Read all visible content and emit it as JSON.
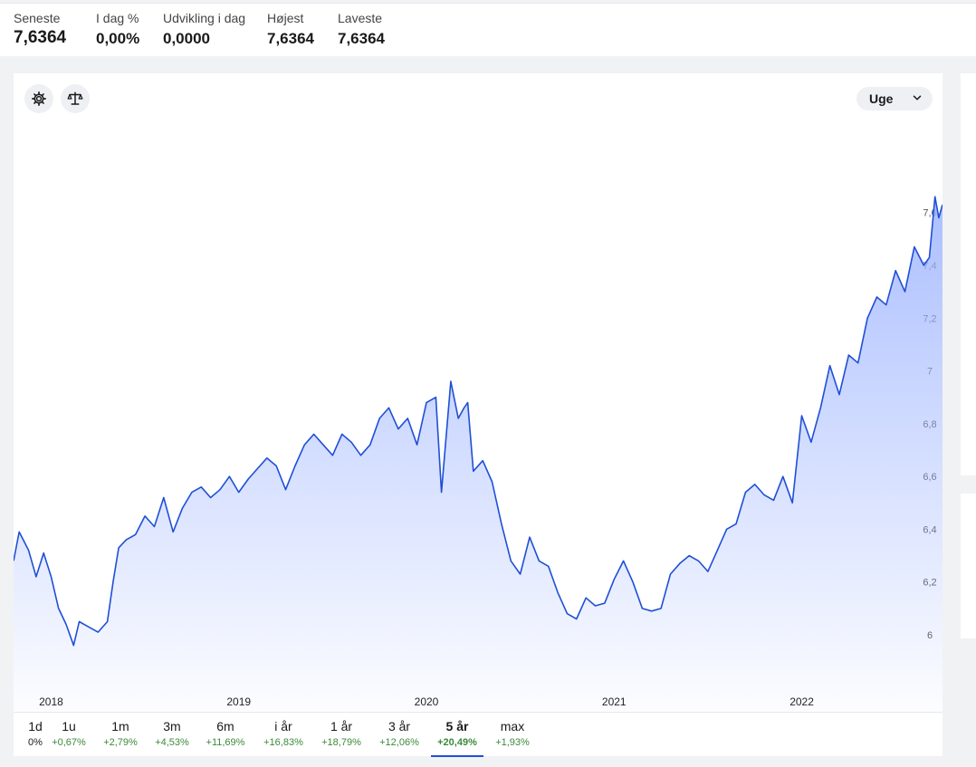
{
  "stats": [
    {
      "label": "Seneste",
      "value": "7,6364"
    },
    {
      "label": "I dag %",
      "value": "0,00%"
    },
    {
      "label": "Udvikling i dag",
      "value": "0,0000"
    },
    {
      "label": "Højest",
      "value": "7,6364"
    },
    {
      "label": "Laveste",
      "value": "7,6364"
    }
  ],
  "toolbar": {
    "settings_icon": "gear-icon",
    "compare_icon": "scale-icon",
    "interval_label": "Uge",
    "interval_icon": "chevron-down-icon"
  },
  "periods": [
    {
      "label": "1d",
      "change": "0%"
    },
    {
      "label": "1u",
      "change": "+0,67%"
    },
    {
      "label": "1m",
      "change": "+2,79%"
    },
    {
      "label": "3m",
      "change": "+4,53%"
    },
    {
      "label": "6m",
      "change": "+11,69%"
    },
    {
      "label": "i år",
      "change": "+16,83%"
    },
    {
      "label": "1 år",
      "change": "+18,79%"
    },
    {
      "label": "3 år",
      "change": "+12,06%"
    },
    {
      "label": "5 år",
      "change": "+20,49%"
    },
    {
      "label": "max",
      "change": "+1,93%"
    }
  ],
  "active_period": "5 år",
  "colors": {
    "line": "#1f4fd6",
    "fill_top": "#9db4ff",
    "positive": "#3b8a3b"
  },
  "chart_data": {
    "type": "area",
    "y_ticks": [
      "6",
      "6,2",
      "6,4",
      "6,6",
      "6,8",
      "7",
      "7,2",
      "7,4",
      "7,6"
    ],
    "y_tick_values": [
      6.0,
      6.2,
      6.4,
      6.6,
      6.8,
      7.0,
      7.2,
      7.4,
      7.6
    ],
    "x_ticks": [
      "2018",
      "2019",
      "2020",
      "2021",
      "2022"
    ],
    "x_tick_values": [
      2018.0,
      2019.0,
      2020.0,
      2021.0,
      2022.0
    ],
    "xlim": [
      2017.8,
      2022.75
    ],
    "ylim": [
      5.88,
      7.75
    ],
    "grid": false,
    "series": [
      {
        "x": [
          2017.8,
          2017.83,
          2017.88,
          2017.92,
          2017.96,
          2018.0,
          2018.04,
          2018.08,
          2018.12,
          2018.15,
          2018.2,
          2018.25,
          2018.3,
          2018.33,
          2018.36,
          2018.4,
          2018.45,
          2018.5,
          2018.55,
          2018.6,
          2018.65,
          2018.7,
          2018.75,
          2018.8,
          2018.85,
          2018.9,
          2018.95,
          2019.0,
          2019.05,
          2019.1,
          2019.15,
          2019.2,
          2019.25,
          2019.3,
          2019.35,
          2019.4,
          2019.45,
          2019.5,
          2019.55,
          2019.6,
          2019.65,
          2019.7,
          2019.75,
          2019.8,
          2019.85,
          2019.9,
          2019.95,
          2020.0,
          2020.05,
          2020.08,
          2020.13,
          2020.17,
          2020.2,
          2020.22,
          2020.25,
          2020.3,
          2020.35,
          2020.4,
          2020.45,
          2020.5,
          2020.55,
          2020.6,
          2020.65,
          2020.7,
          2020.75,
          2020.8,
          2020.85,
          2020.9,
          2020.95,
          2021.0,
          2021.05,
          2021.1,
          2021.15,
          2021.2,
          2021.25,
          2021.3,
          2021.35,
          2021.4,
          2021.45,
          2021.5,
          2021.55,
          2021.6,
          2021.65,
          2021.7,
          2021.75,
          2021.8,
          2021.85,
          2021.9,
          2021.95,
          2022.0,
          2022.05,
          2022.1,
          2022.15,
          2022.2,
          2022.25,
          2022.3,
          2022.35,
          2022.4,
          2022.45,
          2022.5,
          2022.55,
          2022.6,
          2022.65,
          2022.68,
          2022.71,
          2022.73,
          2022.75
        ],
        "y": [
          6.28,
          6.39,
          6.32,
          6.22,
          6.31,
          6.22,
          6.1,
          6.04,
          5.96,
          6.05,
          6.03,
          6.01,
          6.05,
          6.2,
          6.33,
          6.36,
          6.38,
          6.45,
          6.41,
          6.52,
          6.39,
          6.48,
          6.54,
          6.56,
          6.52,
          6.55,
          6.6,
          6.54,
          6.59,
          6.63,
          6.67,
          6.64,
          6.55,
          6.64,
          6.72,
          6.76,
          6.72,
          6.68,
          6.76,
          6.73,
          6.68,
          6.72,
          6.82,
          6.86,
          6.78,
          6.82,
          6.72,
          6.88,
          6.9,
          6.54,
          6.96,
          6.82,
          6.86,
          6.88,
          6.62,
          6.66,
          6.58,
          6.42,
          6.28,
          6.23,
          6.37,
          6.28,
          6.26,
          6.16,
          6.08,
          6.06,
          6.14,
          6.11,
          6.12,
          6.21,
          6.28,
          6.2,
          6.1,
          6.09,
          6.1,
          6.23,
          6.27,
          6.3,
          6.28,
          6.24,
          6.32,
          6.4,
          6.42,
          6.54,
          6.57,
          6.53,
          6.51,
          6.6,
          6.5,
          6.83,
          6.73,
          6.86,
          7.02,
          6.91,
          7.06,
          7.03,
          7.2,
          7.28,
          7.25,
          7.38,
          7.3,
          7.47,
          7.4,
          7.43,
          7.66,
          7.58,
          7.63
        ]
      }
    ]
  }
}
